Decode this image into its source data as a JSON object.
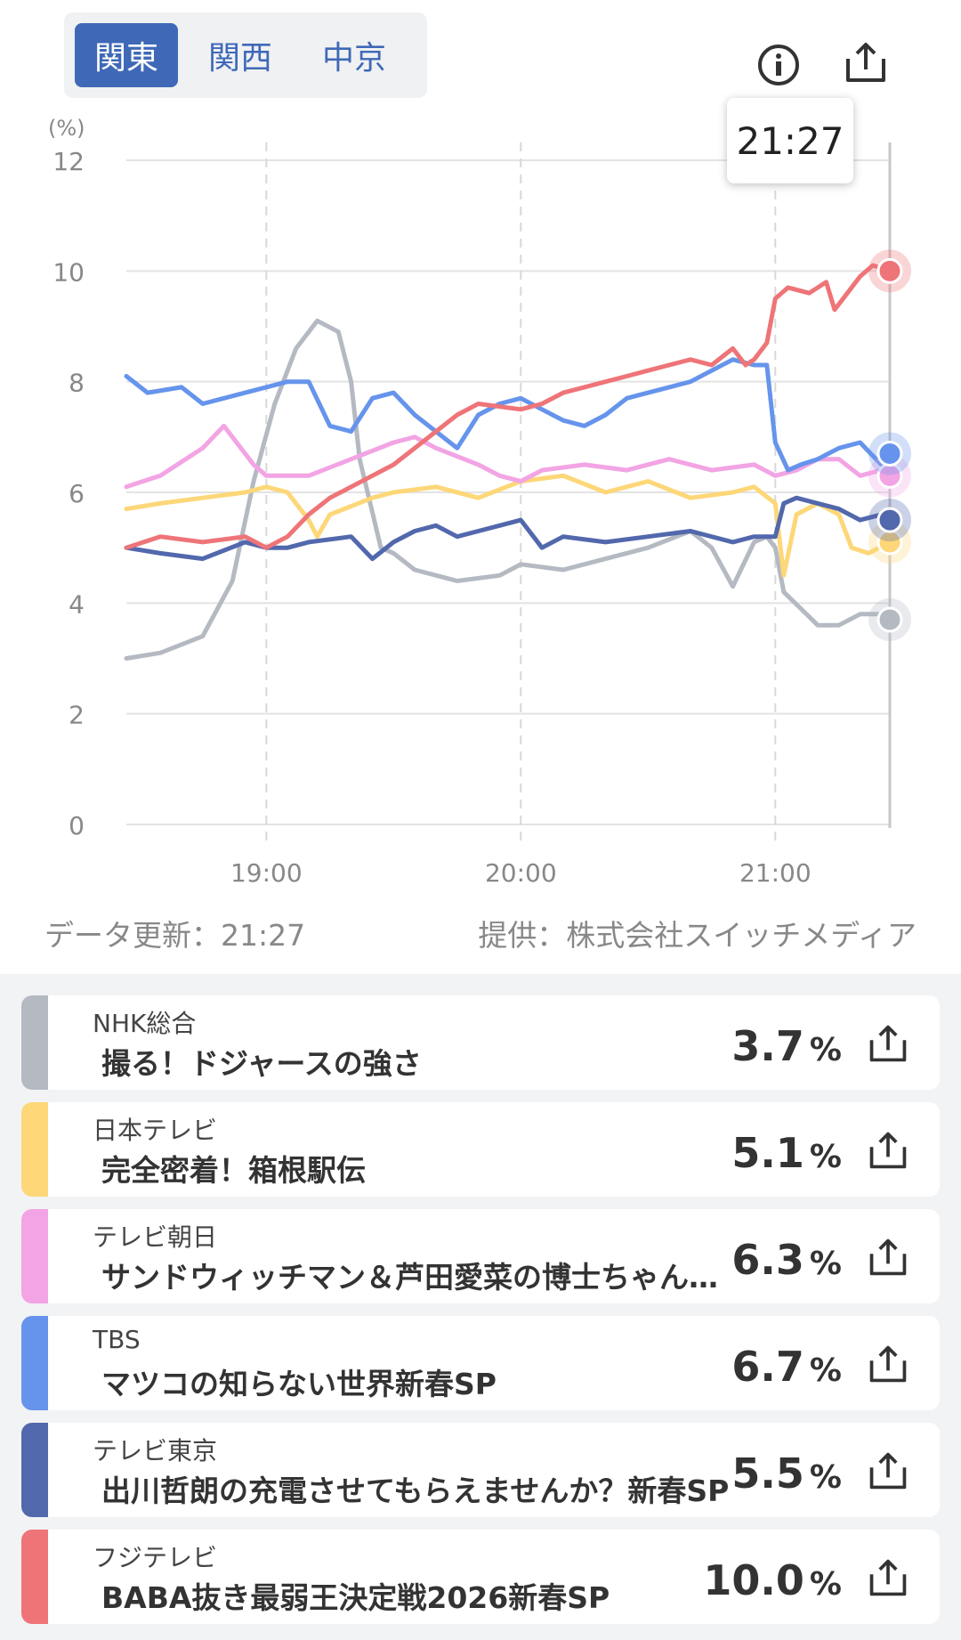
{
  "tabs": [
    {
      "label": "関東",
      "active": true
    },
    {
      "label": "関西",
      "active": false
    },
    {
      "label": "中京",
      "active": false
    }
  ],
  "icons": {
    "info": "info-icon",
    "share": "share-icon"
  },
  "tooltip": {
    "time": "21:27"
  },
  "footer": {
    "updated": "データ更新：21:27",
    "provider": "提供：株式会社スイッチメディア"
  },
  "chart_data": {
    "type": "line",
    "ylabel": "(%)",
    "ylim": [
      0,
      12
    ],
    "yticks": [
      0,
      2,
      4,
      6,
      8,
      10,
      12
    ],
    "xlim": [
      "18:27",
      "21:27"
    ],
    "xticks": [
      "19:00",
      "20:00",
      "21:00"
    ],
    "grid": true,
    "series": [
      {
        "name": "NHK総合",
        "color": "#b4b9c2",
        "x": [
          "18:27",
          "18:35",
          "18:45",
          "18:52",
          "18:57",
          "19:02",
          "19:07",
          "19:12",
          "19:17",
          "19:20",
          "19:22",
          "19:27",
          "19:30",
          "19:35",
          "19:45",
          "19:55",
          "20:00",
          "20:10",
          "20:20",
          "20:30",
          "20:40",
          "20:45",
          "20:50",
          "20:55",
          "20:58",
          "21:00",
          "21:02",
          "21:06",
          "21:10",
          "21:15",
          "21:20",
          "21:25",
          "21:27"
        ],
        "values": [
          3.0,
          3.1,
          3.4,
          4.4,
          6.2,
          7.6,
          8.6,
          9.1,
          8.9,
          8.0,
          6.6,
          5.0,
          4.9,
          4.6,
          4.4,
          4.5,
          4.7,
          4.6,
          4.8,
          5.0,
          5.3,
          5.0,
          4.3,
          5.1,
          5.2,
          5.0,
          4.2,
          3.9,
          3.6,
          3.6,
          3.8,
          3.8,
          3.7
        ]
      },
      {
        "name": "日本テレビ",
        "color": "#fdd778",
        "x": [
          "18:27",
          "18:35",
          "18:45",
          "18:55",
          "19:00",
          "19:05",
          "19:10",
          "19:12",
          "19:15",
          "19:25",
          "19:30",
          "19:40",
          "19:50",
          "20:00",
          "20:10",
          "20:20",
          "20:30",
          "20:40",
          "20:50",
          "20:55",
          "21:00",
          "21:02",
          "21:05",
          "21:10",
          "21:15",
          "21:18",
          "21:22",
          "21:27"
        ],
        "values": [
          5.7,
          5.8,
          5.9,
          6.0,
          6.1,
          6.0,
          5.5,
          5.2,
          5.6,
          5.9,
          6.0,
          6.1,
          5.9,
          6.2,
          6.3,
          6.0,
          6.2,
          5.9,
          6.0,
          6.1,
          5.8,
          4.5,
          5.6,
          5.8,
          5.6,
          5.0,
          4.9,
          5.1
        ]
      },
      {
        "name": "テレビ朝日",
        "color": "#f2a4e4",
        "x": [
          "18:27",
          "18:35",
          "18:45",
          "18:50",
          "18:57",
          "19:00",
          "19:10",
          "19:20",
          "19:30",
          "19:35",
          "19:40",
          "19:50",
          "19:55",
          "20:00",
          "20:05",
          "20:15",
          "20:25",
          "20:35",
          "20:45",
          "20:55",
          "21:00",
          "21:05",
          "21:10",
          "21:15",
          "21:20",
          "21:25",
          "21:27"
        ],
        "values": [
          6.1,
          6.3,
          6.8,
          7.2,
          6.5,
          6.3,
          6.3,
          6.6,
          6.9,
          7.0,
          6.8,
          6.5,
          6.3,
          6.2,
          6.4,
          6.5,
          6.4,
          6.6,
          6.4,
          6.5,
          6.3,
          6.4,
          6.6,
          6.6,
          6.3,
          6.4,
          6.3
        ]
      },
      {
        "name": "TBS",
        "color": "#6694ec",
        "x": [
          "18:27",
          "18:32",
          "18:40",
          "18:45",
          "18:50",
          "18:55",
          "19:00",
          "19:05",
          "19:10",
          "19:15",
          "19:20",
          "19:25",
          "19:30",
          "19:35",
          "19:45",
          "19:50",
          "19:55",
          "20:00",
          "20:05",
          "20:10",
          "20:15",
          "20:20",
          "20:25",
          "20:30",
          "20:35",
          "20:40",
          "20:45",
          "20:50",
          "20:55",
          "20:58",
          "21:00",
          "21:03",
          "21:06",
          "21:10",
          "21:15",
          "21:20",
          "21:25",
          "21:27"
        ],
        "values": [
          8.1,
          7.8,
          7.9,
          7.6,
          7.7,
          7.8,
          7.9,
          8.0,
          8.0,
          7.2,
          7.1,
          7.7,
          7.8,
          7.4,
          6.8,
          7.4,
          7.6,
          7.7,
          7.5,
          7.3,
          7.2,
          7.4,
          7.7,
          7.8,
          7.9,
          8.0,
          8.2,
          8.4,
          8.3,
          8.3,
          6.9,
          6.4,
          6.5,
          6.6,
          6.8,
          6.9,
          6.5,
          6.7
        ]
      },
      {
        "name": "テレビ東京",
        "color": "#5268ad",
        "x": [
          "18:27",
          "18:35",
          "18:45",
          "18:55",
          "19:00",
          "19:05",
          "19:10",
          "19:20",
          "19:25",
          "19:30",
          "19:35",
          "19:40",
          "19:45",
          "19:50",
          "19:55",
          "20:00",
          "20:05",
          "20:10",
          "20:20",
          "20:30",
          "20:40",
          "20:50",
          "20:55",
          "21:00",
          "21:02",
          "21:05",
          "21:10",
          "21:15",
          "21:20",
          "21:25",
          "21:27"
        ],
        "values": [
          5.0,
          4.9,
          4.8,
          5.1,
          5.0,
          5.0,
          5.1,
          5.2,
          4.8,
          5.1,
          5.3,
          5.4,
          5.2,
          5.3,
          5.4,
          5.5,
          5.0,
          5.2,
          5.1,
          5.2,
          5.3,
          5.1,
          5.2,
          5.2,
          5.8,
          5.9,
          5.8,
          5.7,
          5.5,
          5.6,
          5.5
        ]
      },
      {
        "name": "フジテレビ",
        "color": "#ee7478",
        "x": [
          "18:27",
          "18:35",
          "18:45",
          "18:55",
          "19:00",
          "19:05",
          "19:10",
          "19:15",
          "19:20",
          "19:25",
          "19:30",
          "19:35",
          "19:40",
          "19:45",
          "19:50",
          "20:00",
          "20:05",
          "20:10",
          "20:15",
          "20:20",
          "20:25",
          "20:30",
          "20:35",
          "20:40",
          "20:45",
          "20:50",
          "20:53",
          "20:55",
          "20:58",
          "21:00",
          "21:03",
          "21:08",
          "21:12",
          "21:14",
          "21:17",
          "21:20",
          "21:23",
          "21:27"
        ],
        "values": [
          5.0,
          5.2,
          5.1,
          5.2,
          5.0,
          5.2,
          5.6,
          5.9,
          6.1,
          6.3,
          6.5,
          6.8,
          7.1,
          7.4,
          7.6,
          7.5,
          7.6,
          7.8,
          7.9,
          8.0,
          8.1,
          8.2,
          8.3,
          8.4,
          8.3,
          8.6,
          8.3,
          8.4,
          8.7,
          9.5,
          9.7,
          9.6,
          9.8,
          9.3,
          9.6,
          9.9,
          10.1,
          10.0
        ]
      }
    ]
  },
  "programs": [
    {
      "channel": "NHK総合",
      "title": "撮る！ドジャースの強さ",
      "value": "3.7",
      "unit": "%",
      "color": "#b4b9c2"
    },
    {
      "channel": "日本テレビ",
      "title": "完全密着！箱根駅伝",
      "value": "5.1",
      "unit": "%",
      "color": "#fdd778"
    },
    {
      "channel": "テレビ朝日",
      "title": "サンドウィッチマン＆芦田愛菜の博士ちゃん新春SP",
      "value": "6.3",
      "unit": "%",
      "color": "#f2a4e4"
    },
    {
      "channel": "TBS",
      "title": "マツコの知らない世界新春SP",
      "value": "6.7",
      "unit": "%",
      "color": "#6694ec"
    },
    {
      "channel": "テレビ東京",
      "title": "出川哲朗の充電させてもらえませんか？新春SP",
      "value": "5.5",
      "unit": "%",
      "color": "#5268ad"
    },
    {
      "channel": "フジテレビ",
      "title": "BABA抜き最弱王決定戦2026新春SP",
      "value": "10.0",
      "unit": "%",
      "color": "#ee7478"
    }
  ]
}
